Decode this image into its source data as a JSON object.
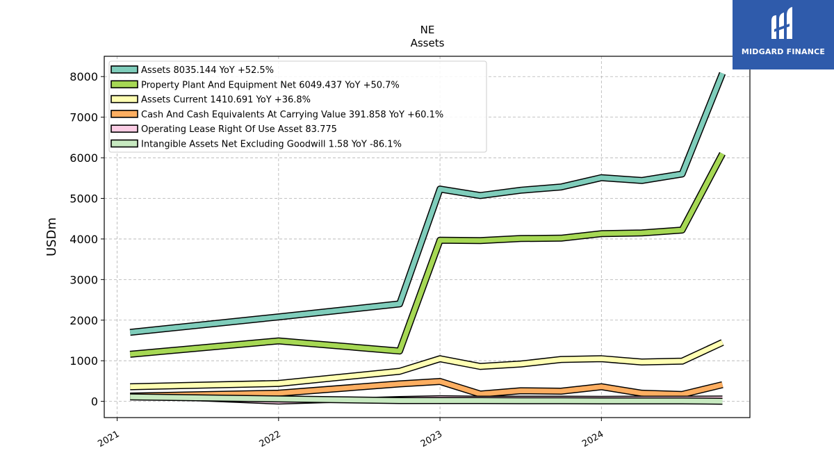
{
  "brand": {
    "name": "MIDGARD FINANCE",
    "color": "#2f5bab"
  },
  "chart_data": {
    "type": "line",
    "title": "NE",
    "subtitle": "Assets",
    "ylabel": "USDm",
    "xlabel": "",
    "ylim": [
      -400,
      8500
    ],
    "xlim": [
      2020.92,
      2024.92
    ],
    "yticks": [
      0,
      1000,
      2000,
      3000,
      4000,
      5000,
      6000,
      7000,
      8000
    ],
    "xticks": [
      {
        "value": 2021,
        "label": "2021"
      },
      {
        "value": 2022,
        "label": "2022"
      },
      {
        "value": 2023,
        "label": "2023"
      },
      {
        "value": 2024,
        "label": "2024"
      }
    ],
    "grid": true,
    "legend_position": "top-left",
    "series": [
      {
        "name": "Assets  8035.144 YoY +52.5%",
        "color": "#7fcdbb",
        "width": 7,
        "points": [
          [
            2021.08,
            1700
          ],
          [
            2022.0,
            2080
          ],
          [
            2022.75,
            2400
          ],
          [
            2023.0,
            5230
          ],
          [
            2023.25,
            5070
          ],
          [
            2023.5,
            5200
          ],
          [
            2023.75,
            5280
          ],
          [
            2024.0,
            5510
          ],
          [
            2024.25,
            5440
          ],
          [
            2024.5,
            5600
          ],
          [
            2024.75,
            8080
          ]
        ]
      },
      {
        "name": "Property Plant And Equipment Net  6049.437 YoY +50.7%",
        "color": "#a6d854",
        "width": 7,
        "points": [
          [
            2021.08,
            1160
          ],
          [
            2022.0,
            1490
          ],
          [
            2022.75,
            1240
          ],
          [
            2023.0,
            3970
          ],
          [
            2023.25,
            3960
          ],
          [
            2023.5,
            4010
          ],
          [
            2023.75,
            4020
          ],
          [
            2024.0,
            4130
          ],
          [
            2024.25,
            4150
          ],
          [
            2024.5,
            4220
          ],
          [
            2024.75,
            6100
          ]
        ]
      },
      {
        "name": "Assets Current  1410.691 YoY +36.8%",
        "color": "#ffffb3",
        "width": 7,
        "points": [
          [
            2021.08,
            360
          ],
          [
            2022.0,
            440
          ],
          [
            2022.75,
            740
          ],
          [
            2023.0,
            1050
          ],
          [
            2023.25,
            860
          ],
          [
            2023.5,
            920
          ],
          [
            2023.75,
            1030
          ],
          [
            2024.0,
            1050
          ],
          [
            2024.25,
            970
          ],
          [
            2024.5,
            990
          ],
          [
            2024.75,
            1450
          ]
        ]
      },
      {
        "name": "Cash And Cash Equivalents At Carrying Value  391.858 YoY +60.1%",
        "color": "#fdae61",
        "width": 7,
        "points": [
          [
            2021.08,
            130
          ],
          [
            2022.0,
            200
          ],
          [
            2022.75,
            430
          ],
          [
            2023.0,
            490
          ],
          [
            2023.25,
            180
          ],
          [
            2023.5,
            260
          ],
          [
            2023.75,
            250
          ],
          [
            2024.0,
            360
          ],
          [
            2024.25,
            200
          ],
          [
            2024.5,
            170
          ],
          [
            2024.75,
            410
          ]
        ]
      },
      {
        "name": "Operating Lease Right Of Use Asset  83.775",
        "color": "#fccde5",
        "width": 4,
        "points": [
          [
            2021.08,
            130
          ],
          [
            2022.0,
            -20
          ],
          [
            2022.75,
            70
          ],
          [
            2023.0,
            90
          ],
          [
            2023.25,
            80
          ],
          [
            2023.5,
            80
          ],
          [
            2023.75,
            80
          ],
          [
            2024.0,
            75
          ],
          [
            2024.25,
            80
          ],
          [
            2024.5,
            80
          ],
          [
            2024.75,
            85
          ]
        ]
      },
      {
        "name": "Intangible Assets Net Excluding Goodwill  1.58 YoY -86.1%",
        "color": "#c7e9c0",
        "width": 7,
        "points": [
          [
            2021.08,
            110
          ],
          [
            2022.0,
            60
          ],
          [
            2022.75,
            20
          ],
          [
            2023.0,
            20
          ],
          [
            2023.25,
            20
          ],
          [
            2023.5,
            15
          ],
          [
            2023.75,
            15
          ],
          [
            2024.0,
            10
          ],
          [
            2024.25,
            10
          ],
          [
            2024.5,
            10
          ],
          [
            2024.75,
            2
          ]
        ]
      }
    ]
  }
}
